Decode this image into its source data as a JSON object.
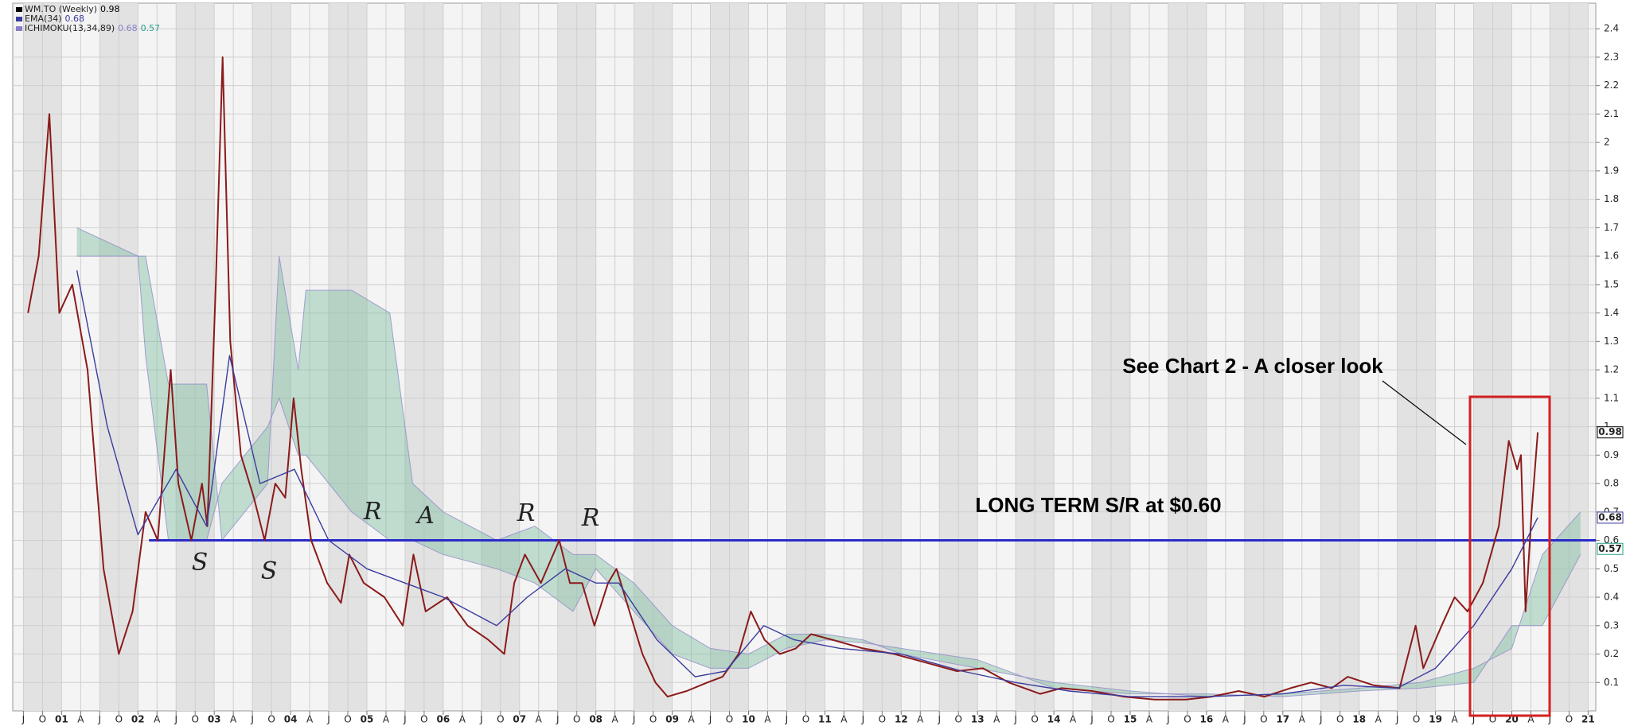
{
  "chart_data": {
    "type": "line",
    "xlim": [
      2000.36,
      2021.1
    ],
    "ylim": [
      0,
      2.49
    ],
    "yticks": [
      0.1,
      0.2,
      0.3,
      0.4,
      0.5,
      0.6,
      0.7,
      0.8,
      0.9,
      1.0,
      1.1,
      1.2,
      1.3,
      1.4,
      1.5,
      1.6,
      1.7,
      1.8,
      1.9,
      2.0,
      2.1,
      2.2,
      2.3,
      2.4
    ],
    "xticks": [
      {
        "value": 2000.5,
        "label": "J"
      },
      {
        "value": 2000.75,
        "label": "O"
      },
      {
        "value": 2001,
        "label": "01"
      },
      {
        "value": 2001.25,
        "label": "A"
      },
      {
        "value": 2001.5,
        "label": "J"
      },
      {
        "value": 2001.75,
        "label": "O"
      },
      {
        "value": 2002,
        "label": "02"
      },
      {
        "value": 2002.25,
        "label": "A"
      },
      {
        "value": 2002.5,
        "label": "J"
      },
      {
        "value": 2002.75,
        "label": "O"
      },
      {
        "value": 2003,
        "label": "03"
      },
      {
        "value": 2003.25,
        "label": "A"
      },
      {
        "value": 2003.5,
        "label": "J"
      },
      {
        "value": 2003.75,
        "label": "O"
      },
      {
        "value": 2004,
        "label": "04"
      },
      {
        "value": 2004.25,
        "label": "A"
      },
      {
        "value": 2004.5,
        "label": "J"
      },
      {
        "value": 2004.75,
        "label": "O"
      },
      {
        "value": 2005,
        "label": "05"
      },
      {
        "value": 2005.25,
        "label": "A"
      },
      {
        "value": 2005.5,
        "label": "J"
      },
      {
        "value": 2005.75,
        "label": "O"
      },
      {
        "value": 2006,
        "label": "06"
      },
      {
        "value": 2006.25,
        "label": "A"
      },
      {
        "value": 2006.5,
        "label": "J"
      },
      {
        "value": 2006.75,
        "label": "O"
      },
      {
        "value": 2007,
        "label": "07"
      },
      {
        "value": 2007.25,
        "label": "A"
      },
      {
        "value": 2007.5,
        "label": "J"
      },
      {
        "value": 2007.75,
        "label": "O"
      },
      {
        "value": 2008,
        "label": "08"
      },
      {
        "value": 2008.25,
        "label": "A"
      },
      {
        "value": 2008.5,
        "label": "J"
      },
      {
        "value": 2008.75,
        "label": "O"
      },
      {
        "value": 2009,
        "label": "09"
      },
      {
        "value": 2009.25,
        "label": "A"
      },
      {
        "value": 2009.5,
        "label": "J"
      },
      {
        "value": 2009.75,
        "label": "O"
      },
      {
        "value": 2010,
        "label": "10"
      },
      {
        "value": 2010.25,
        "label": "A"
      },
      {
        "value": 2010.5,
        "label": "J"
      },
      {
        "value": 2010.75,
        "label": "O"
      },
      {
        "value": 2011,
        "label": "11"
      },
      {
        "value": 2011.25,
        "label": "A"
      },
      {
        "value": 2011.5,
        "label": "J"
      },
      {
        "value": 2011.75,
        "label": "O"
      },
      {
        "value": 2012,
        "label": "12"
      },
      {
        "value": 2012.25,
        "label": "A"
      },
      {
        "value": 2012.5,
        "label": "J"
      },
      {
        "value": 2012.75,
        "label": "O"
      },
      {
        "value": 2013,
        "label": "13"
      },
      {
        "value": 2013.25,
        "label": "A"
      },
      {
        "value": 2013.5,
        "label": "J"
      },
      {
        "value": 2013.75,
        "label": "O"
      },
      {
        "value": 2014,
        "label": "14"
      },
      {
        "value": 2014.25,
        "label": "A"
      },
      {
        "value": 2014.5,
        "label": "J"
      },
      {
        "value": 2014.75,
        "label": "O"
      },
      {
        "value": 2015,
        "label": "15"
      },
      {
        "value": 2015.25,
        "label": "A"
      },
      {
        "value": 2015.5,
        "label": "J"
      },
      {
        "value": 2015.75,
        "label": "O"
      },
      {
        "value": 2016,
        "label": "16"
      },
      {
        "value": 2016.25,
        "label": "A"
      },
      {
        "value": 2016.5,
        "label": "J"
      },
      {
        "value": 2016.75,
        "label": "O"
      },
      {
        "value": 2017,
        "label": "17"
      },
      {
        "value": 2017.25,
        "label": "A"
      },
      {
        "value": 2017.5,
        "label": "J"
      },
      {
        "value": 2017.75,
        "label": "O"
      },
      {
        "value": 2018,
        "label": "18"
      },
      {
        "value": 2018.25,
        "label": "A"
      },
      {
        "value": 2018.5,
        "label": "J"
      },
      {
        "value": 2018.75,
        "label": "O"
      },
      {
        "value": 2019,
        "label": "19"
      },
      {
        "value": 2019.25,
        "label": "A"
      },
      {
        "value": 2019.5,
        "label": "J"
      },
      {
        "value": 2019.75,
        "label": "O"
      },
      {
        "value": 2020,
        "label": "20"
      },
      {
        "value": 2020.25,
        "label": "A"
      },
      {
        "value": 2020.5,
        "label": "J"
      },
      {
        "value": 2020.75,
        "label": "O"
      },
      {
        "value": 2021,
        "label": "21"
      }
    ],
    "grid": true,
    "series": [
      {
        "name": "WM.TO (Weekly)",
        "color": "#8b1a1a",
        "last_value": 0.98,
        "x": [
          2000.56,
          2000.7,
          2000.84,
          2000.97,
          2001.14,
          2001.34,
          2001.55,
          2001.75,
          2001.93,
          2002.1,
          2002.26,
          2002.43,
          2002.53,
          2002.7,
          2002.84,
          2002.91,
          2003.02,
          2003.11,
          2003.21,
          2003.35,
          2003.52,
          2003.66,
          2003.8,
          2003.93,
          2004.04,
          2004.14,
          2004.27,
          2004.48,
          2004.66,
          2004.77,
          2004.96,
          2005.23,
          2005.47,
          2005.61,
          2005.77,
          2006.05,
          2006.32,
          2006.59,
          2006.8,
          2006.93,
          2007.07,
          2007.28,
          2007.52,
          2007.66,
          2007.82,
          2007.98,
          2008.16,
          2008.27,
          2008.44,
          2008.61,
          2008.78,
          2008.94,
          2009.19,
          2009.46,
          2009.66,
          2009.87,
          2010.03,
          2010.21,
          2010.41,
          2010.62,
          2010.82,
          2011.1,
          2011.5,
          2011.91,
          2012.32,
          2012.73,
          2013.07,
          2013.41,
          2013.82,
          2014.1,
          2014.5,
          2014.92,
          2015.32,
          2015.73,
          2016.07,
          2016.42,
          2016.76,
          2017.1,
          2017.37,
          2017.64,
          2017.85,
          2018.19,
          2018.53,
          2018.74,
          2018.84,
          2019.08,
          2019.25,
          2019.42,
          2019.62,
          2019.83,
          2019.96,
          2020.07,
          2020.12,
          2020.18,
          2020.26,
          2020.34
        ],
        "values": [
          1.4,
          1.6,
          2.1,
          1.4,
          1.5,
          1.2,
          0.5,
          0.2,
          0.35,
          0.7,
          0.6,
          1.2,
          0.8,
          0.6,
          0.8,
          0.65,
          1.5,
          2.3,
          1.3,
          0.9,
          0.75,
          0.6,
          0.8,
          0.75,
          1.1,
          0.85,
          0.6,
          0.45,
          0.38,
          0.55,
          0.45,
          0.4,
          0.3,
          0.55,
          0.35,
          0.4,
          0.3,
          0.25,
          0.2,
          0.45,
          0.55,
          0.45,
          0.6,
          0.45,
          0.45,
          0.3,
          0.45,
          0.5,
          0.35,
          0.2,
          0.1,
          0.05,
          0.07,
          0.1,
          0.12,
          0.2,
          0.35,
          0.25,
          0.2,
          0.22,
          0.27,
          0.25,
          0.22,
          0.2,
          0.17,
          0.14,
          0.15,
          0.1,
          0.06,
          0.08,
          0.07,
          0.05,
          0.04,
          0.04,
          0.05,
          0.07,
          0.05,
          0.08,
          0.1,
          0.08,
          0.12,
          0.09,
          0.08,
          0.3,
          0.15,
          0.3,
          0.4,
          0.35,
          0.45,
          0.65,
          0.95,
          0.85,
          0.9,
          0.35,
          0.7,
          0.98
        ]
      },
      {
        "name": "EMA(34)",
        "color": "#3b3b9e",
        "last_value": 0.68,
        "x": [
          2001.2,
          2001.6,
          2002.0,
          2002.5,
          2002.9,
          2003.2,
          2003.6,
          2004.05,
          2004.5,
          2005.0,
          2005.5,
          2006.0,
          2006.7,
          2007.1,
          2007.6,
          2008.0,
          2008.3,
          2008.8,
          2009.3,
          2009.7,
          2010.2,
          2010.6,
          2011.2,
          2012.0,
          2012.8,
          2013.5,
          2014.2,
          2015.0,
          2016.0,
          2017.0,
          2017.8,
          2018.5,
          2019.0,
          2019.5,
          2020.0,
          2020.34
        ],
        "values": [
          1.55,
          1.0,
          0.62,
          0.85,
          0.65,
          1.25,
          0.8,
          0.85,
          0.6,
          0.5,
          0.45,
          0.4,
          0.3,
          0.4,
          0.5,
          0.45,
          0.45,
          0.25,
          0.12,
          0.14,
          0.3,
          0.25,
          0.22,
          0.2,
          0.14,
          0.1,
          0.07,
          0.05,
          0.05,
          0.06,
          0.09,
          0.08,
          0.15,
          0.3,
          0.5,
          0.68
        ]
      }
    ],
    "ichimoku": {
      "name": "ICHIMOKU(13,34,89)",
      "color": "#8a7fc8",
      "fill": "#7fbfa2",
      "last_values": [
        0.68,
        0.57
      ],
      "x": [
        2001.2,
        2002.0,
        2002.1,
        2002.4,
        2002.9,
        2003.1,
        2003.7,
        2003.85,
        2004.1,
        2004.2,
        2004.8,
        2005.3,
        2005.6,
        2006.0,
        2006.7,
        2007.2,
        2007.7,
        2008.0,
        2008.5,
        2009.0,
        2009.5,
        2010.0,
        2010.5,
        2011.0,
        2011.5,
        2012.0,
        2013.0,
        2014.0,
        2015.0,
        2016.0,
        2017.0,
        2018.0,
        2018.8,
        2019.5,
        2020.0,
        2020.4,
        2020.9
      ],
      "span_a": [
        1.7,
        1.6,
        1.6,
        1.15,
        1.15,
        0.6,
        0.8,
        1.6,
        1.2,
        1.48,
        1.48,
        1.4,
        0.8,
        0.7,
        0.6,
        0.65,
        0.55,
        0.55,
        0.45,
        0.3,
        0.22,
        0.2,
        0.27,
        0.27,
        0.25,
        0.2,
        0.15,
        0.1,
        0.07,
        0.05,
        0.06,
        0.08,
        0.1,
        0.15,
        0.22,
        0.55,
        0.7
      ],
      "span_b": [
        1.6,
        1.6,
        1.25,
        0.6,
        0.6,
        0.8,
        1.0,
        1.1,
        0.9,
        0.9,
        0.7,
        0.6,
        0.6,
        0.55,
        0.5,
        0.45,
        0.35,
        0.5,
        0.35,
        0.2,
        0.15,
        0.15,
        0.22,
        0.25,
        0.24,
        0.22,
        0.18,
        0.08,
        0.06,
        0.06,
        0.05,
        0.07,
        0.08,
        0.1,
        0.3,
        0.3,
        0.55
      ]
    },
    "reference_line": {
      "value": 0.6,
      "label": "LONG TERM S/R at $0.60",
      "color": "#2b2bc8"
    },
    "callout": "See Chart 2 - A closer look",
    "handwritten": [
      "S",
      "S",
      "R",
      "A",
      "R",
      "R"
    ]
  }
}
